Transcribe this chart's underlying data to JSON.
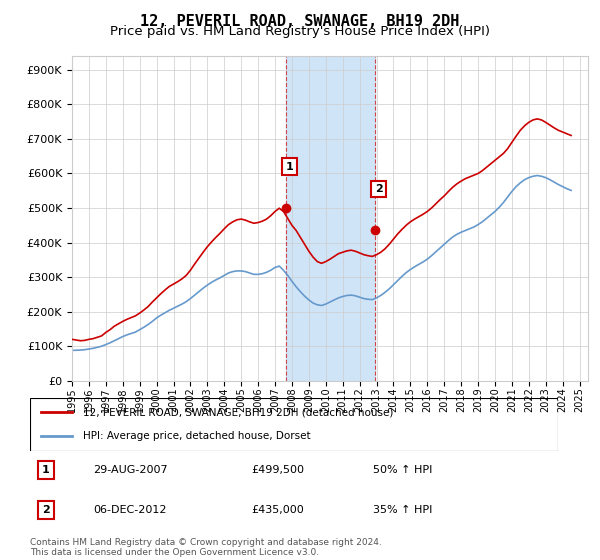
{
  "title": "12, PEVERIL ROAD, SWANAGE, BH19 2DH",
  "subtitle": "Price paid vs. HM Land Registry's House Price Index (HPI)",
  "title_fontsize": 11,
  "subtitle_fontsize": 9.5,
  "ylabel_ticks": [
    "£0",
    "£100K",
    "£200K",
    "£300K",
    "£400K",
    "£500K",
    "£600K",
    "£700K",
    "£800K",
    "£900K"
  ],
  "ytick_vals": [
    0,
    100000,
    200000,
    300000,
    400000,
    500000,
    600000,
    700000,
    800000,
    900000
  ],
  "ylim": [
    0,
    940000
  ],
  "xlim_start": 1995.0,
  "xlim_end": 2025.5,
  "xtick_years": [
    1995,
    1996,
    1997,
    1998,
    1999,
    2000,
    2001,
    2002,
    2003,
    2004,
    2005,
    2006,
    2007,
    2008,
    2009,
    2010,
    2011,
    2012,
    2013,
    2014,
    2015,
    2016,
    2017,
    2018,
    2019,
    2020,
    2021,
    2022,
    2023,
    2024,
    2025
  ],
  "red_line_color": "#cc0000",
  "blue_line_color": "#6699cc",
  "shade_color": "#d0e4f7",
  "sale1_x": 2007.65,
  "sale1_y": 499500,
  "sale2_x": 2012.92,
  "sale2_y": 435000,
  "legend_red_label": "12, PEVERIL ROAD, SWANAGE, BH19 2DH (detached house)",
  "legend_blue_label": "HPI: Average price, detached house, Dorset",
  "table_rows": [
    {
      "num": "1",
      "date": "29-AUG-2007",
      "price": "£499,500",
      "pct": "50% ↑ HPI"
    },
    {
      "num": "2",
      "date": "06-DEC-2012",
      "price": "£435,000",
      "pct": "35% ↑ HPI"
    }
  ],
  "footnote": "Contains HM Land Registry data © Crown copyright and database right 2024.\nThis data is licensed under the Open Government Licence v3.0.",
  "red_x": [
    1995.0,
    1995.25,
    1995.5,
    1995.75,
    1996.0,
    1996.25,
    1996.5,
    1996.75,
    1997.0,
    1997.25,
    1997.5,
    1997.75,
    1998.0,
    1998.25,
    1998.5,
    1998.75,
    1999.0,
    1999.25,
    1999.5,
    1999.75,
    2000.0,
    2000.25,
    2000.5,
    2000.75,
    2001.0,
    2001.25,
    2001.5,
    2001.75,
    2002.0,
    2002.25,
    2002.5,
    2002.75,
    2003.0,
    2003.25,
    2003.5,
    2003.75,
    2004.0,
    2004.25,
    2004.5,
    2004.75,
    2005.0,
    2005.25,
    2005.5,
    2005.75,
    2006.0,
    2006.25,
    2006.5,
    2006.75,
    2007.0,
    2007.25,
    2007.5,
    2007.75,
    2008.0,
    2008.25,
    2008.5,
    2008.75,
    2009.0,
    2009.25,
    2009.5,
    2009.75,
    2010.0,
    2010.25,
    2010.5,
    2010.75,
    2011.0,
    2011.25,
    2011.5,
    2011.75,
    2012.0,
    2012.25,
    2012.5,
    2012.75,
    2013.0,
    2013.25,
    2013.5,
    2013.75,
    2014.0,
    2014.25,
    2014.5,
    2014.75,
    2015.0,
    2015.25,
    2015.5,
    2015.75,
    2016.0,
    2016.25,
    2016.5,
    2016.75,
    2017.0,
    2017.25,
    2017.5,
    2017.75,
    2018.0,
    2018.25,
    2018.5,
    2018.75,
    2019.0,
    2019.25,
    2019.5,
    2019.75,
    2020.0,
    2020.25,
    2020.5,
    2020.75,
    2021.0,
    2021.25,
    2021.5,
    2021.75,
    2022.0,
    2022.25,
    2022.5,
    2022.75,
    2023.0,
    2023.25,
    2023.5,
    2023.75,
    2024.0,
    2024.25,
    2024.5
  ],
  "red_y": [
    120000,
    118000,
    116000,
    117000,
    120000,
    122000,
    126000,
    130000,
    140000,
    148000,
    158000,
    165000,
    172000,
    178000,
    183000,
    188000,
    196000,
    205000,
    215000,
    228000,
    240000,
    252000,
    263000,
    273000,
    280000,
    287000,
    295000,
    305000,
    320000,
    338000,
    355000,
    372000,
    388000,
    402000,
    415000,
    427000,
    440000,
    452000,
    460000,
    466000,
    468000,
    465000,
    460000,
    456000,
    458000,
    462000,
    468000,
    478000,
    490000,
    499500,
    490000,
    470000,
    450000,
    435000,
    415000,
    395000,
    375000,
    358000,
    345000,
    340000,
    345000,
    352000,
    360000,
    368000,
    372000,
    376000,
    378000,
    375000,
    370000,
    365000,
    362000,
    360000,
    365000,
    372000,
    382000,
    395000,
    410000,
    425000,
    438000,
    450000,
    460000,
    468000,
    475000,
    482000,
    490000,
    500000,
    512000,
    524000,
    535000,
    548000,
    560000,
    570000,
    578000,
    585000,
    590000,
    595000,
    600000,
    608000,
    618000,
    628000,
    638000,
    648000,
    658000,
    672000,
    690000,
    708000,
    725000,
    738000,
    748000,
    755000,
    758000,
    755000,
    748000,
    740000,
    732000,
    725000,
    720000,
    715000,
    710000
  ],
  "blue_x": [
    1995.0,
    1995.25,
    1995.5,
    1995.75,
    1996.0,
    1996.25,
    1996.5,
    1996.75,
    1997.0,
    1997.25,
    1997.5,
    1997.75,
    1998.0,
    1998.25,
    1998.5,
    1998.75,
    1999.0,
    1999.25,
    1999.5,
    1999.75,
    2000.0,
    2000.25,
    2000.5,
    2000.75,
    2001.0,
    2001.25,
    2001.5,
    2001.75,
    2002.0,
    2002.25,
    2002.5,
    2002.75,
    2003.0,
    2003.25,
    2003.5,
    2003.75,
    2004.0,
    2004.25,
    2004.5,
    2004.75,
    2005.0,
    2005.25,
    2005.5,
    2005.75,
    2006.0,
    2006.25,
    2006.5,
    2006.75,
    2007.0,
    2007.25,
    2007.5,
    2007.75,
    2008.0,
    2008.25,
    2008.5,
    2008.75,
    2009.0,
    2009.25,
    2009.5,
    2009.75,
    2010.0,
    2010.25,
    2010.5,
    2010.75,
    2011.0,
    2011.25,
    2011.5,
    2011.75,
    2012.0,
    2012.25,
    2012.5,
    2012.75,
    2013.0,
    2013.25,
    2013.5,
    2013.75,
    2014.0,
    2014.25,
    2014.5,
    2014.75,
    2015.0,
    2015.25,
    2015.5,
    2015.75,
    2016.0,
    2016.25,
    2016.5,
    2016.75,
    2017.0,
    2017.25,
    2017.5,
    2017.75,
    2018.0,
    2018.25,
    2018.5,
    2018.75,
    2019.0,
    2019.25,
    2019.5,
    2019.75,
    2020.0,
    2020.25,
    2020.5,
    2020.75,
    2021.0,
    2021.25,
    2021.5,
    2021.75,
    2022.0,
    2022.25,
    2022.5,
    2022.75,
    2023.0,
    2023.25,
    2023.5,
    2023.75,
    2024.0,
    2024.25,
    2024.5
  ],
  "blue_y": [
    88000,
    88500,
    89000,
    90000,
    92000,
    94000,
    97000,
    100000,
    105000,
    110000,
    116000,
    122000,
    128000,
    133000,
    137000,
    141000,
    148000,
    155000,
    163000,
    172000,
    182000,
    190000,
    197000,
    204000,
    210000,
    216000,
    222000,
    229000,
    238000,
    248000,
    258000,
    268000,
    277000,
    285000,
    292000,
    298000,
    305000,
    312000,
    316000,
    318000,
    318000,
    316000,
    312000,
    308000,
    308000,
    310000,
    314000,
    320000,
    328000,
    332000,
    320000,
    305000,
    288000,
    272000,
    258000,
    245000,
    234000,
    225000,
    220000,
    218000,
    222000,
    228000,
    234000,
    240000,
    244000,
    247000,
    248000,
    246000,
    242000,
    238000,
    236000,
    235000,
    240000,
    247000,
    256000,
    266000,
    278000,
    290000,
    302000,
    313000,
    322000,
    330000,
    337000,
    344000,
    352000,
    362000,
    373000,
    384000,
    395000,
    406000,
    416000,
    424000,
    430000,
    435000,
    440000,
    445000,
    452000,
    460000,
    470000,
    480000,
    490000,
    502000,
    516000,
    532000,
    548000,
    562000,
    573000,
    582000,
    588000,
    592000,
    594000,
    592000,
    588000,
    582000,
    575000,
    568000,
    562000,
    556000,
    551000
  ]
}
